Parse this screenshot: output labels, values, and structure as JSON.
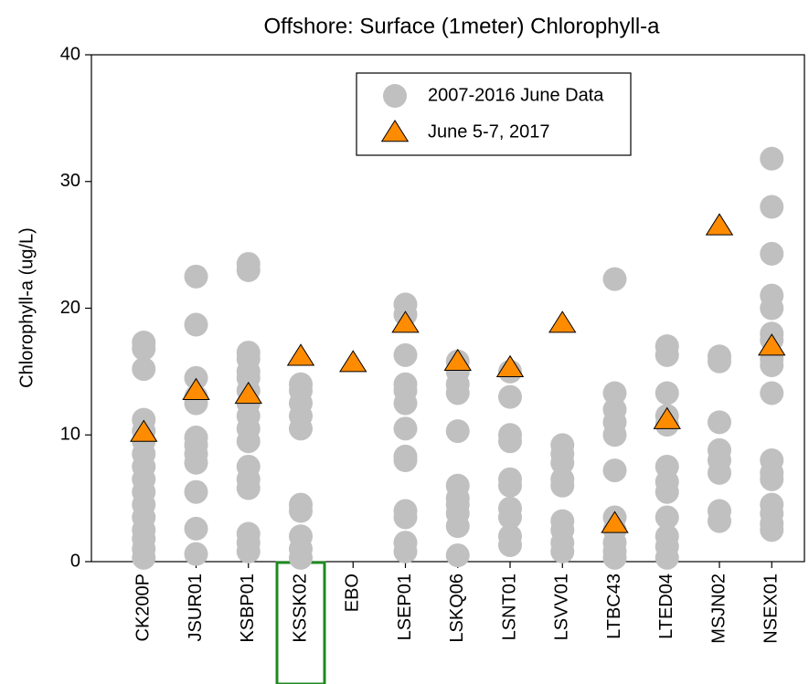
{
  "chart_data": {
    "type": "strip",
    "title": "Offshore: Surface (1meter) Chlorophyll-a",
    "y_label": "Chlorophyll-a (ug/L)",
    "categories": [
      "CK200P",
      "JSUR01",
      "KSBP01",
      "KSSK02",
      "EBO",
      "LSEP01",
      "LSKQ06",
      "LSNT01",
      "LSVV01",
      "LTBC43",
      "LTED04",
      "MSJN02",
      "NSEX01"
    ],
    "highlight": 3,
    "highlight_color": "#1f8a1f",
    "legend": "upper center",
    "ylim": [
      0,
      40
    ],
    "yticks": [
      0,
      10,
      20,
      30,
      40
    ],
    "series": [
      {
        "name": "2007-2016 June Data",
        "color": "#c0c0c0",
        "marker": "circle",
        "values": [
          [
            17.3,
            16.8,
            15.2,
            11.2,
            10.3,
            9.5,
            8.5,
            7.5,
            6.5,
            5.5,
            4.5,
            3.5,
            2.5,
            1.8,
            1,
            0.3
          ],
          [
            22.5,
            18.7,
            14.5,
            13,
            12.5,
            9.8,
            9.2,
            8.5,
            7.8,
            5.5,
            2.6,
            0.6
          ],
          [
            23.5,
            23,
            16.5,
            16,
            15,
            14.5,
            13.5,
            12.5,
            11.5,
            10.5,
            9.5,
            7.5,
            6.5,
            5.8,
            2.2,
            1.5,
            0.8
          ],
          [
            14,
            13.5,
            12.5,
            11.5,
            10.5,
            4.5,
            4,
            2,
            1,
            0.3
          ],
          [],
          [
            20.3,
            19.5,
            16.3,
            14,
            13.5,
            12.5,
            10.5,
            8.3,
            8,
            4,
            3.5,
            1.5,
            0.8
          ],
          [
            15.8,
            15,
            14,
            13.3,
            10.3,
            6,
            5,
            4.5,
            3.8,
            2.8,
            0.5
          ],
          [
            15,
            13,
            10,
            9.5,
            6.5,
            6,
            4.2,
            3.5,
            2,
            1.3
          ],
          [
            9.2,
            8.5,
            7.8,
            6.5,
            6,
            3.2,
            2.5,
            1.5,
            0.8
          ],
          [
            22.3,
            13.3,
            12,
            11,
            10,
            7.2,
            3.5,
            2.5,
            1.5,
            0.8,
            0.3
          ],
          [
            17,
            16.3,
            13.3,
            11.5,
            10.8,
            7.5,
            6.3,
            5.5,
            3.5,
            2,
            1.2,
            0.3
          ],
          [
            16.2,
            15.8,
            11,
            8.8,
            8,
            7,
            4,
            3.2
          ],
          [
            31.8,
            28,
            24.3,
            21,
            20,
            18,
            17.5,
            16,
            15.5,
            13.3,
            8,
            7,
            6.5,
            4.5,
            3.8,
            3,
            2.5
          ]
        ]
      },
      {
        "name": "June 5-7, 2017",
        "color": "#ff8c00",
        "marker": "triangle",
        "values": [
          10.2,
          13.5,
          13.2,
          16.2,
          15.7,
          18.8,
          15.8,
          15.3,
          18.8,
          3,
          11.2,
          26.5,
          17
        ]
      }
    ]
  }
}
